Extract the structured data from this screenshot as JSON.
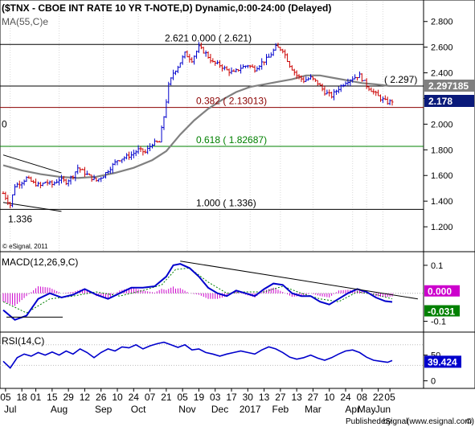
{
  "chart_data": [
    {
      "type": "candlestick",
      "title": "($TNX - CBOE INT RATE 10 YR T-NOTE,D) Dynamic,0:00-24:00 (Delayed)",
      "ma_label": "MA(55,C)e",
      "watermark": "© eSignal, 2011",
      "ylim": [
        1.05,
        2.93
      ],
      "y_ticks": [
        {
          "value": 2.8,
          "label": "2.800"
        },
        {
          "value": 2.6,
          "label": "2.600"
        },
        {
          "value": 2.4,
          "label": "2.400"
        },
        {
          "value": 2.2,
          "label": "2.200"
        },
        {
          "value": 2.0,
          "label": "2.000"
        },
        {
          "value": 1.8,
          "label": "1.800"
        },
        {
          "value": 1.6,
          "label": "1.600"
        },
        {
          "value": 1.4,
          "label": "1.400"
        },
        {
          "value": 1.2,
          "label": "1.200"
        }
      ],
      "price_labels": [
        {
          "value": 2.29718,
          "label": "2.297185",
          "color": "#808080"
        },
        {
          "value": 2.178,
          "label": "2.178",
          "color": "#0a1a7a"
        }
      ],
      "fib_levels": [
        {
          "value": 2.621,
          "label": "2.621  0.000 ( 2.621)",
          "color": "#000000"
        },
        {
          "value": 2.297,
          "label": "( 2.297)",
          "color": "#000000"
        },
        {
          "value": 2.13013,
          "label": "0.382 ( 2.13013)",
          "color": "#8b0000"
        },
        {
          "value": 1.82687,
          "label": "0.618 ( 1.82687)",
          "color": "#008000"
        },
        {
          "value": 1.336,
          "label": "1.000 ( 1.336)",
          "color": "#000000"
        }
      ],
      "left_annotations": [
        {
          "value": 1.336,
          "label": "1.336"
        },
        {
          "value": 1.9,
          "label": "0"
        }
      ],
      "close_series": [
        [
          0,
          1.46
        ],
        [
          3,
          1.37
        ],
        [
          5,
          1.52
        ],
        [
          8,
          1.55
        ],
        [
          10,
          1.58
        ],
        [
          13,
          1.54
        ],
        [
          16,
          1.52
        ],
        [
          18,
          1.55
        ],
        [
          21,
          1.53
        ],
        [
          24,
          1.57
        ],
        [
          27,
          1.55
        ],
        [
          30,
          1.6
        ],
        [
          32,
          1.66
        ],
        [
          35,
          1.62
        ],
        [
          38,
          1.58
        ],
        [
          40,
          1.56
        ],
        [
          43,
          1.6
        ],
        [
          46,
          1.66
        ],
        [
          49,
          1.72
        ],
        [
          52,
          1.74
        ],
        [
          55,
          1.76
        ],
        [
          58,
          1.8
        ],
        [
          61,
          1.78
        ],
        [
          64,
          1.85
        ],
        [
          67,
          1.86
        ],
        [
          69,
          2.06
        ],
        [
          71,
          2.3
        ],
        [
          73,
          2.4
        ],
        [
          75,
          2.45
        ],
        [
          78,
          2.55
        ],
        [
          81,
          2.5
        ],
        [
          84,
          2.6
        ],
        [
          87,
          2.55
        ],
        [
          90,
          2.48
        ],
        [
          93,
          2.46
        ],
        [
          96,
          2.42
        ],
        [
          99,
          2.4
        ],
        [
          102,
          2.44
        ],
        [
          105,
          2.46
        ],
        [
          108,
          2.43
        ],
        [
          111,
          2.48
        ],
        [
          114,
          2.52
        ],
        [
          117,
          2.6
        ],
        [
          120,
          2.58
        ],
        [
          123,
          2.46
        ],
        [
          126,
          2.38
        ],
        [
          129,
          2.34
        ],
        [
          132,
          2.36
        ],
        [
          135,
          2.32
        ],
        [
          138,
          2.25
        ],
        [
          141,
          2.22
        ],
        [
          144,
          2.28
        ],
        [
          147,
          2.33
        ],
        [
          150,
          2.36
        ],
        [
          153,
          2.38
        ],
        [
          156,
          2.3
        ],
        [
          159,
          2.25
        ],
        [
          162,
          2.2
        ],
        [
          165,
          2.17
        ],
        [
          167,
          2.18
        ]
      ],
      "ma_series": [
        [
          0,
          1.68
        ],
        [
          8,
          1.64
        ],
        [
          16,
          1.61
        ],
        [
          24,
          1.59
        ],
        [
          32,
          1.58
        ],
        [
          40,
          1.59
        ],
        [
          48,
          1.62
        ],
        [
          56,
          1.66
        ],
        [
          64,
          1.72
        ],
        [
          70,
          1.79
        ],
        [
          76,
          1.92
        ],
        [
          82,
          2.03
        ],
        [
          88,
          2.12
        ],
        [
          94,
          2.19
        ],
        [
          100,
          2.25
        ],
        [
          106,
          2.29
        ],
        [
          112,
          2.31
        ],
        [
          118,
          2.33
        ],
        [
          124,
          2.35
        ],
        [
          130,
          2.38
        ],
        [
          136,
          2.38
        ],
        [
          142,
          2.36
        ],
        [
          148,
          2.34
        ],
        [
          154,
          2.32
        ],
        [
          160,
          2.31
        ],
        [
          166,
          2.297
        ]
      ],
      "trendlines": [
        {
          "points": [
            [
              0,
              1.76
            ],
            [
              25,
              1.62
            ]
          ]
        },
        {
          "points": [
            [
              0,
              1.39
            ],
            [
              25,
              1.32
            ]
          ]
        }
      ]
    },
    {
      "type": "line",
      "title": "MACD(12,26,9,C)",
      "ylim": [
        -0.13,
        0.14
      ],
      "y_ticks": [
        {
          "value": 0.1,
          "label": "0.1"
        },
        {
          "value": -0.1,
          "label": "-0.1"
        }
      ],
      "value_labels": [
        {
          "value": 0.0,
          "label": "0.000",
          "color": "#cc00cc"
        },
        {
          "value": -0.031,
          "label": "-0.031",
          "color": "#008000"
        }
      ],
      "macd_line": [
        [
          0,
          -0.06
        ],
        [
          5,
          -0.095
        ],
        [
          10,
          -0.08
        ],
        [
          15,
          -0.02
        ],
        [
          20,
          0.0
        ],
        [
          25,
          -0.015
        ],
        [
          30,
          -0.005
        ],
        [
          35,
          0.015
        ],
        [
          40,
          -0.005
        ],
        [
          45,
          -0.02
        ],
        [
          50,
          0.0
        ],
        [
          55,
          0.02
        ],
        [
          60,
          0.02
        ],
        [
          65,
          0.025
        ],
        [
          70,
          0.06
        ],
        [
          73,
          0.1
        ],
        [
          76,
          0.105
        ],
        [
          80,
          0.09
        ],
        [
          84,
          0.06
        ],
        [
          88,
          0.02
        ],
        [
          92,
          0.0
        ],
        [
          96,
          -0.01
        ],
        [
          100,
          0.01
        ],
        [
          104,
          0.0
        ],
        [
          108,
          -0.01
        ],
        [
          112,
          0.015
        ],
        [
          116,
          0.035
        ],
        [
          120,
          0.03
        ],
        [
          124,
          0.0
        ],
        [
          128,
          -0.01
        ],
        [
          132,
          -0.01
        ],
        [
          136,
          -0.03
        ],
        [
          140,
          -0.04
        ],
        [
          144,
          -0.02
        ],
        [
          148,
          0.0
        ],
        [
          152,
          0.015
        ],
        [
          156,
          0.005
        ],
        [
          160,
          -0.015
        ],
        [
          164,
          -0.028
        ],
        [
          167,
          -0.031
        ]
      ],
      "signal_line": [
        [
          0,
          -0.03
        ],
        [
          10,
          -0.07
        ],
        [
          20,
          -0.02
        ],
        [
          30,
          -0.01
        ],
        [
          40,
          0.005
        ],
        [
          50,
          -0.01
        ],
        [
          60,
          0.01
        ],
        [
          68,
          0.03
        ],
        [
          74,
          0.085
        ],
        [
          80,
          0.09
        ],
        [
          88,
          0.04
        ],
        [
          96,
          0.0
        ],
        [
          104,
          0.005
        ],
        [
          112,
          0.005
        ],
        [
          120,
          0.025
        ],
        [
          128,
          0.0
        ],
        [
          136,
          -0.02
        ],
        [
          144,
          -0.03
        ],
        [
          152,
          0.005
        ],
        [
          160,
          -0.005
        ],
        [
          167,
          -0.02
        ]
      ],
      "trendline": [
        [
          76,
          0.115
        ],
        [
          178,
          -0.02
        ]
      ]
    },
    {
      "type": "line",
      "title": "RSI(14,C)",
      "ylim": [
        -10,
        90
      ],
      "y_ticks": [
        {
          "value": 50,
          "label": "50"
        },
        {
          "value": 0,
          "label": "0"
        }
      ],
      "value_labels": [
        {
          "value": 39.424,
          "label": "39.424",
          "color": "#0000cc"
        }
      ],
      "rsi_line": [
        [
          0,
          38
        ],
        [
          3,
          25
        ],
        [
          6,
          45
        ],
        [
          9,
          52
        ],
        [
          12,
          48
        ],
        [
          15,
          55
        ],
        [
          18,
          50
        ],
        [
          21,
          56
        ],
        [
          24,
          50
        ],
        [
          27,
          58
        ],
        [
          30,
          52
        ],
        [
          33,
          62
        ],
        [
          36,
          55
        ],
        [
          39,
          45
        ],
        [
          42,
          55
        ],
        [
          45,
          62
        ],
        [
          48,
          58
        ],
        [
          51,
          66
        ],
        [
          54,
          64
        ],
        [
          57,
          70
        ],
        [
          60,
          62
        ],
        [
          63,
          68
        ],
        [
          66,
          72
        ],
        [
          69,
          75
        ],
        [
          72,
          70
        ],
        [
          75,
          65
        ],
        [
          78,
          70
        ],
        [
          81,
          60
        ],
        [
          84,
          62
        ],
        [
          87,
          55
        ],
        [
          90,
          52
        ],
        [
          93,
          48
        ],
        [
          96,
          52
        ],
        [
          99,
          55
        ],
        [
          102,
          58
        ],
        [
          105,
          55
        ],
        [
          108,
          52
        ],
        [
          111,
          60
        ],
        [
          114,
          66
        ],
        [
          117,
          62
        ],
        [
          120,
          55
        ],
        [
          123,
          46
        ],
        [
          126,
          42
        ],
        [
          129,
          45
        ],
        [
          132,
          50
        ],
        [
          135,
          44
        ],
        [
          138,
          40
        ],
        [
          141,
          45
        ],
        [
          144,
          52
        ],
        [
          147,
          58
        ],
        [
          150,
          60
        ],
        [
          153,
          55
        ],
        [
          156,
          46
        ],
        [
          159,
          40
        ],
        [
          162,
          38
        ],
        [
          165,
          36
        ],
        [
          167,
          39.4
        ]
      ]
    }
  ],
  "x_axis": {
    "days": [
      {
        "i": 1,
        "label": "05"
      },
      {
        "i": 8,
        "label": "18"
      },
      {
        "i": 14,
        "label": "01"
      },
      {
        "i": 21,
        "label": "15"
      },
      {
        "i": 28,
        "label": "29"
      },
      {
        "i": 35,
        "label": "12"
      },
      {
        "i": 42,
        "label": "26"
      },
      {
        "i": 49,
        "label": "10"
      },
      {
        "i": 56,
        "label": "24"
      },
      {
        "i": 63,
        "label": "07"
      },
      {
        "i": 70,
        "label": "21"
      },
      {
        "i": 77,
        "label": "05"
      },
      {
        "i": 84,
        "label": "19"
      },
      {
        "i": 91,
        "label": "03"
      },
      {
        "i": 98,
        "label": "17"
      },
      {
        "i": 105,
        "label": "30"
      },
      {
        "i": 112,
        "label": "13"
      },
      {
        "i": 119,
        "label": "27"
      },
      {
        "i": 126,
        "label": "13"
      },
      {
        "i": 133,
        "label": "27"
      },
      {
        "i": 140,
        "label": "10"
      },
      {
        "i": 147,
        "label": "24"
      },
      {
        "i": 154,
        "label": "08"
      },
      {
        "i": 161,
        "label": "22"
      },
      {
        "i": 166,
        "label": "05"
      }
    ],
    "months": [
      {
        "i": 3,
        "label": "Jul"
      },
      {
        "i": 24,
        "label": "Aug"
      },
      {
        "i": 43,
        "label": "Sep"
      },
      {
        "i": 58,
        "label": "Oct"
      },
      {
        "i": 79,
        "label": "Nov"
      },
      {
        "i": 93,
        "label": "Dec"
      },
      {
        "i": 106,
        "label": "2017"
      },
      {
        "i": 119,
        "label": "Feb"
      },
      {
        "i": 133,
        "label": "Mar"
      },
      {
        "i": 150,
        "label": "Apr"
      },
      {
        "i": 156,
        "label": "May"
      },
      {
        "i": 163,
        "label": "Jun"
      }
    ]
  },
  "footer": {
    "published_by": "Published by",
    "esignal": "eSignal",
    "url": "(www.esignal.com)",
    "copyright": "©"
  },
  "colors": {
    "bull": "#0000cc",
    "bear": "#cc0000",
    "ma": "#808080",
    "macd": "#0000cc",
    "signal": "#008000",
    "histogram": "#cc00cc",
    "rsi": "#0000cc"
  }
}
